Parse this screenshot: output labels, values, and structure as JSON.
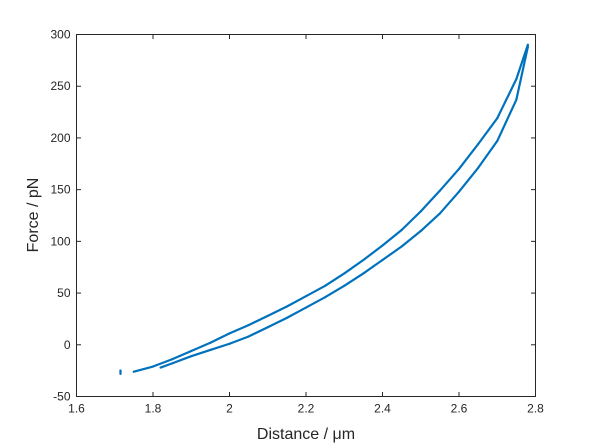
{
  "chart_data": {
    "type": "line",
    "title": "",
    "xlabel": "Distance / μm",
    "ylabel": "Force / pN",
    "xlim": [
      1.6,
      2.8
    ],
    "ylim": [
      -50,
      300
    ],
    "xticks": [
      "1.6",
      "1.8",
      "2",
      "2.2",
      "2.4",
      "2.6",
      "2.8"
    ],
    "yticks": [
      "-50",
      "0",
      "50",
      "100",
      "150",
      "200",
      "250",
      "300"
    ],
    "grid": false,
    "legend": "none",
    "line_color": "#0072BD",
    "series": [
      {
        "x": [
          1.75,
          1.8,
          1.85,
          1.9,
          1.95,
          2.0,
          2.05,
          2.1,
          2.15,
          2.2,
          2.25,
          2.3,
          2.35,
          2.4,
          2.45,
          2.5,
          2.55,
          2.6,
          2.65,
          2.7,
          2.75,
          2.78
        ],
        "values": [
          -26,
          -21,
          -14,
          -6,
          2,
          11,
          19,
          28,
          37,
          47,
          57,
          69,
          82,
          96,
          111,
          129,
          149,
          170,
          194,
          219,
          257,
          290
        ]
      },
      {
        "x": [
          1.82,
          1.85,
          1.9,
          1.95,
          2.0,
          2.05,
          2.1,
          2.15,
          2.2,
          2.25,
          2.3,
          2.35,
          2.4,
          2.45,
          2.5,
          2.55,
          2.6,
          2.65,
          2.7,
          2.75,
          2.78
        ],
        "values": [
          -22,
          -18,
          -11,
          -5,
          1,
          8,
          17,
          26,
          36,
          46,
          57,
          69,
          82,
          95,
          110,
          127,
          148,
          171,
          197,
          237,
          288
        ]
      },
      {
        "x": [
          1.715,
          1.715
        ],
        "values": [
          -28,
          -25
        ]
      }
    ]
  }
}
